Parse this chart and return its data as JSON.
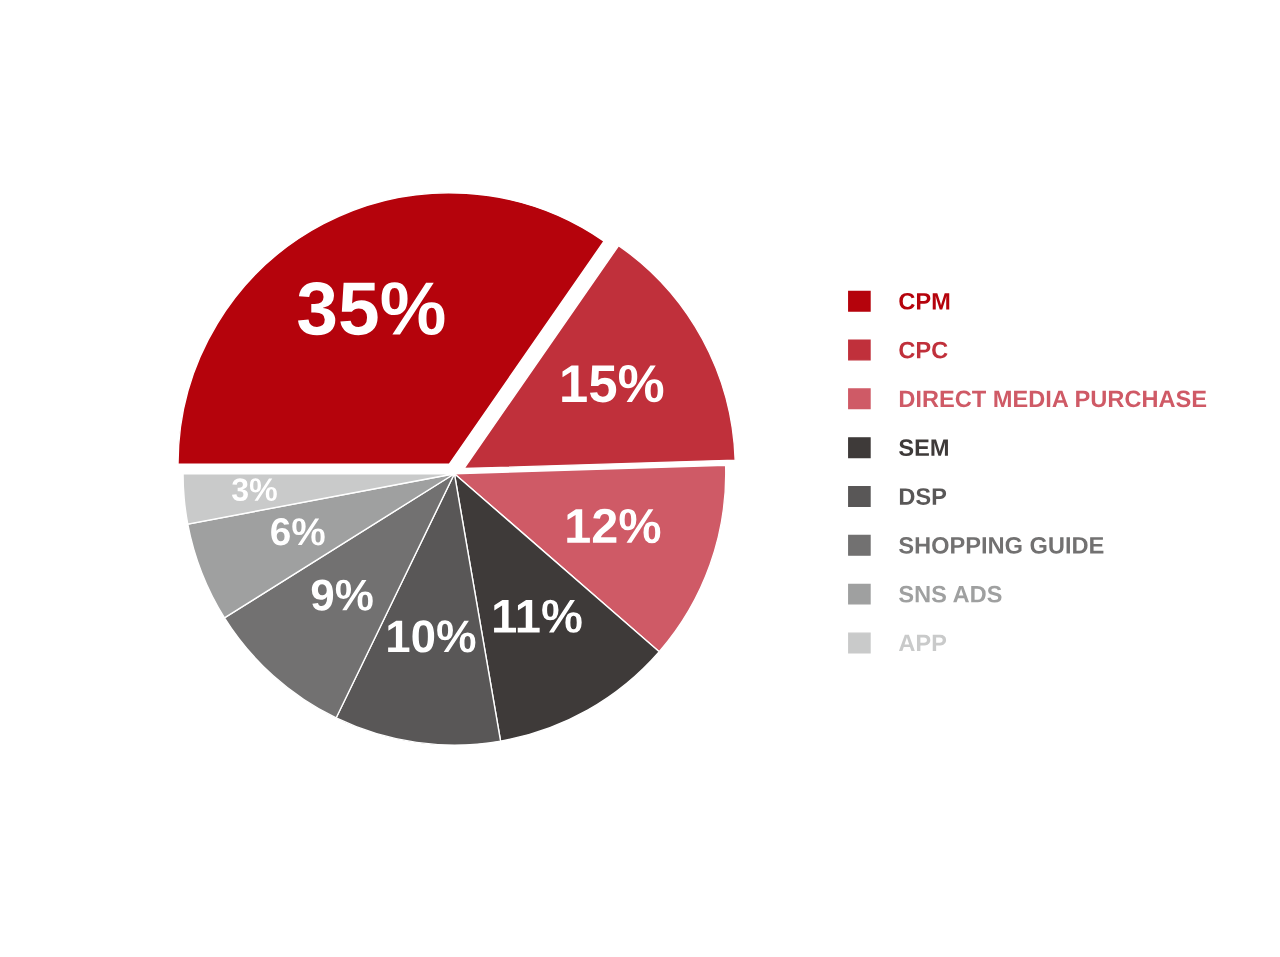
{
  "chart_data": {
    "type": "pie",
    "categories": [
      "CPM",
      "CPC",
      "DIRECT MEDIA PURCHASE",
      "SEM",
      "DSP",
      "SHOPPING GUIDE",
      "SNS ADS",
      "APP"
    ],
    "values": [
      35,
      15,
      12,
      11,
      10,
      9,
      6,
      3
    ],
    "value_labels": [
      "35%",
      "15%",
      "12%",
      "11%",
      "10%",
      "9%",
      "6%",
      "3%"
    ],
    "colors": [
      "#b5030c",
      "#c0303b",
      "#cf5a66",
      "#3e3a39",
      "#595757",
      "#727171",
      "#9fa0a0",
      "#c9caca"
    ],
    "legend": "right"
  }
}
